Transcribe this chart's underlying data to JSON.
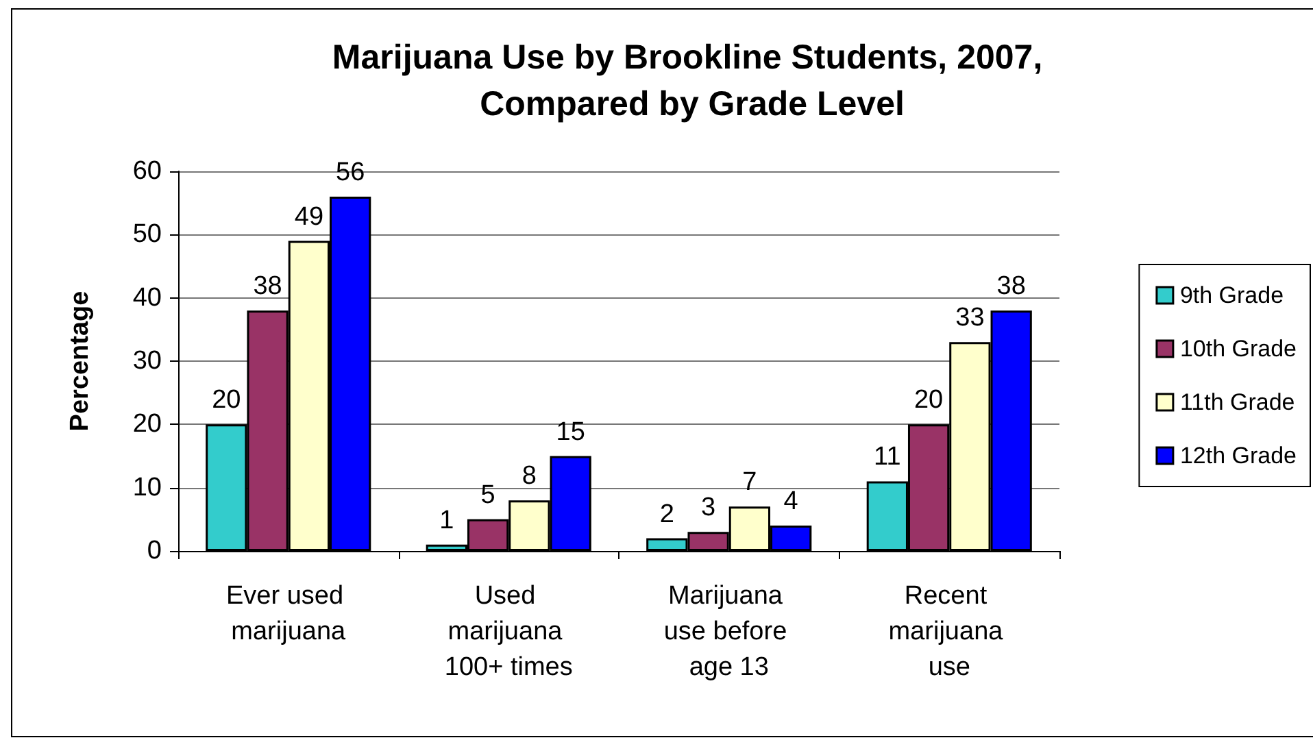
{
  "chart_data": {
    "type": "bar",
    "title": "Marijuana Use by Brookline Students, 2007, Compared by Grade Level",
    "ylabel": "Percentage",
    "categories": [
      "Ever used marijuana",
      "Used marijuana 100+ times",
      "Marijuana use before age 13",
      "Recent marijuana use"
    ],
    "series": [
      {
        "name": "9th Grade",
        "color": "#33cccc",
        "values": [
          20,
          1,
          2,
          11
        ]
      },
      {
        "name": "10th Grade",
        "color": "#993366",
        "values": [
          38,
          5,
          3,
          20
        ]
      },
      {
        "name": "11th Grade",
        "color": "#ffffcc",
        "values": [
          49,
          8,
          7,
          33
        ]
      },
      {
        "name": "12th Grade",
        "color": "#0000ff",
        "values": [
          56,
          15,
          4,
          38
        ]
      }
    ],
    "ylim": [
      0,
      60
    ],
    "yticks": [
      0,
      10,
      20,
      30,
      40,
      50,
      60
    ],
    "grid": "y",
    "legend": "right",
    "data_labels": true
  }
}
